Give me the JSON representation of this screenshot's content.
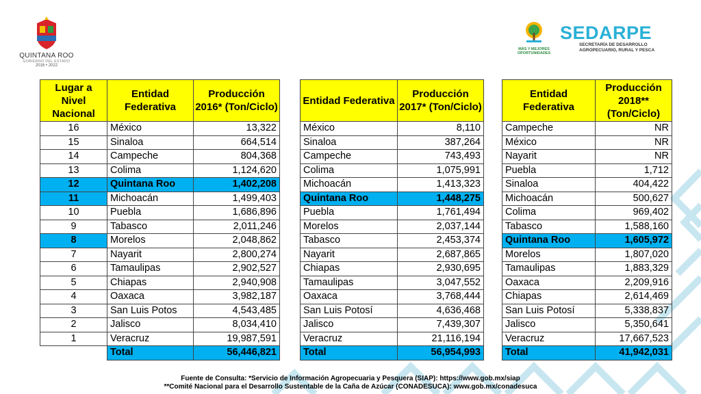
{
  "branding": {
    "left_logo_name": "QUINTANA ROO",
    "left_logo_sub": "GOBIERNO DEL ESTADO",
    "left_logo_years": "2016 • 2022",
    "oportunidades_tag_1": "MÁS Y MEJORES",
    "oportunidades_tag_2": "OPORTUNIDADES",
    "sedarpe_title": "SEDARPE",
    "sedarpe_sub_1": "SECRETARÍA DE DESARROLLO",
    "sedarpe_sub_2": "AGROPECUARIO, RURAL Y PESCA"
  },
  "table1": {
    "headers": [
      "Lugar a Nivel Nacional",
      "Entidad Federativa",
      "Producción 2016* (Ton/Ciclo)"
    ],
    "rows": [
      {
        "rank": "16",
        "state": "México",
        "value": "13,322",
        "highlight": false
      },
      {
        "rank": "15",
        "state": "Sinaloa",
        "value": "664,514",
        "highlight": false
      },
      {
        "rank": "14",
        "state": "Campeche",
        "value": "804,368",
        "highlight": false
      },
      {
        "rank": "13",
        "state": "Colima",
        "value": "1,124,620",
        "highlight": false
      },
      {
        "rank": "12",
        "state": "Quintana Roo",
        "value": "1,402,208",
        "highlight": true
      },
      {
        "rank": "11",
        "state": "Michoacán",
        "value": "1,499,403",
        "highlight": false,
        "rank_highlight": true
      },
      {
        "rank": "10",
        "state": "Puebla",
        "value": "1,686,896",
        "highlight": false
      },
      {
        "rank": "9",
        "state": "Tabasco",
        "value": "2,011,246",
        "highlight": false
      },
      {
        "rank": "8",
        "state": "Morelos",
        "value": "2,048,862",
        "highlight": false,
        "rank_highlight": true
      },
      {
        "rank": "7",
        "state": "Nayarit",
        "value": "2,800,274",
        "highlight": false
      },
      {
        "rank": "6",
        "state": "Tamaulipas",
        "value": "2,902,527",
        "highlight": false
      },
      {
        "rank": "5",
        "state": "Chiapas",
        "value": "2,940,908",
        "highlight": false
      },
      {
        "rank": "4",
        "state": "Oaxaca",
        "value": "3,982,187",
        "highlight": false
      },
      {
        "rank": "3",
        "state": "San Luis Potos",
        "value": "4,543,485",
        "highlight": false
      },
      {
        "rank": "2",
        "state": "Jalisco",
        "value": "8,034,410",
        "highlight": false
      },
      {
        "rank": "1",
        "state": "Veracruz",
        "value": "19,987,591",
        "highlight": false
      }
    ],
    "total_label": "Total",
    "total_value": "56,446,821"
  },
  "table2": {
    "headers": [
      "Entidad Federativa",
      "Producción 2017* (Ton/Ciclo)"
    ],
    "rows": [
      {
        "state": "México",
        "value": "8,110",
        "highlight": false
      },
      {
        "state": "Sinaloa",
        "value": "387,264",
        "highlight": false
      },
      {
        "state": "Campeche",
        "value": "743,493",
        "highlight": false
      },
      {
        "state": "Colima",
        "value": "1,075,991",
        "highlight": false
      },
      {
        "state": "Michoacán",
        "value": "1,413,323",
        "highlight": false
      },
      {
        "state": "Quintana Roo",
        "value": "1,448,275",
        "highlight": true
      },
      {
        "state": "Puebla",
        "value": "1,761,494",
        "highlight": false
      },
      {
        "state": "Morelos",
        "value": "2,037,144",
        "highlight": false
      },
      {
        "state": "Tabasco",
        "value": "2,453,374",
        "highlight": false
      },
      {
        "state": "Nayarit",
        "value": "2,687,865",
        "highlight": false
      },
      {
        "state": "Chiapas",
        "value": "2,930,695",
        "highlight": false
      },
      {
        "state": "Tamaulipas",
        "value": "3,047,552",
        "highlight": false
      },
      {
        "state": "Oaxaca",
        "value": "3,768,444",
        "highlight": false
      },
      {
        "state": "San Luis Potosí",
        "value": "4,636,468",
        "highlight": false
      },
      {
        "state": "Jalisco",
        "value": "7,439,307",
        "highlight": false
      },
      {
        "state": "Veracruz",
        "value": "21,116,194",
        "highlight": false
      }
    ],
    "total_label": "Total",
    "total_value": "56,954,993"
  },
  "table3": {
    "headers": [
      "Entidad Federativa",
      "Producción 2018** (Ton/Ciclo)"
    ],
    "rows": [
      {
        "state": "Campeche",
        "value": "NR",
        "highlight": false
      },
      {
        "state": "México",
        "value": "NR",
        "highlight": false
      },
      {
        "state": "Nayarit",
        "value": "NR",
        "highlight": false
      },
      {
        "state": "Puebla",
        "value": "1,712",
        "highlight": false
      },
      {
        "state": "Sinaloa",
        "value": "404,422",
        "highlight": false
      },
      {
        "state": "Michoacán",
        "value": "500,627",
        "highlight": false
      },
      {
        "state": "Colima",
        "value": "969,402",
        "highlight": false
      },
      {
        "state": "Tabasco",
        "value": "1,588,160",
        "highlight": false
      },
      {
        "state": "Quintana Roo",
        "value": "1,605,972",
        "highlight": true
      },
      {
        "state": "Morelos",
        "value": "1,807,020",
        "highlight": false
      },
      {
        "state": "Tamaulipas",
        "value": "1,883,329",
        "highlight": false
      },
      {
        "state": "Oaxaca",
        "value": "2,209,916",
        "highlight": false
      },
      {
        "state": "Chiapas",
        "value": "2,614,469",
        "highlight": false
      },
      {
        "state": "San Luis Potosí",
        "value": "5,338,837",
        "highlight": false
      },
      {
        "state": "Jalisco",
        "value": "5,350,641",
        "highlight": false
      },
      {
        "state": "Veracruz",
        "value": "17,667,523",
        "highlight": false
      }
    ],
    "total_label": "Total",
    "total_value": "41,942,031"
  },
  "footer": {
    "line1": "Fuente de Consulta: *Servicio de Información Agropecuaria y Pesquera (SIAP): https://www.gob.mx/siap",
    "line2": "**Comité Nacional para el Desarrollo Sustentable de la Caña de Azúcar (CONADESUCA): www.gob.mx/conadesuca"
  },
  "colors": {
    "header_yellow": "#ffff00",
    "highlight_blue": "#00b0f0",
    "pattern_blue": "#bfe3ef",
    "brand_blue": "#2bb0d6"
  }
}
